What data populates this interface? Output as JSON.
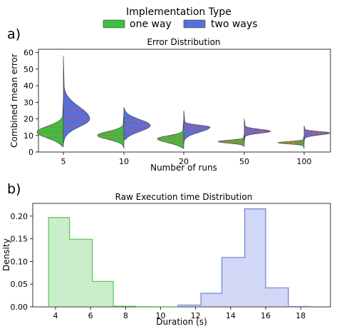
{
  "legend": {
    "title": "Implementation Type",
    "entries": [
      {
        "label": "one way",
        "color": "#3fbf3f"
      },
      {
        "label": "two ways",
        "color": "#5a6fd6"
      }
    ]
  },
  "panel_labels": [
    "a)",
    "b)"
  ],
  "chart_data": [
    {
      "type": "violin",
      "title": "Error Distribution",
      "xlabel": "Number of runs",
      "ylabel": "Combined mean error",
      "categories": [
        "5",
        "10",
        "20",
        "50",
        "100"
      ],
      "ylim": [
        0,
        62
      ],
      "yticks": [
        0,
        10,
        20,
        30,
        40,
        50,
        60
      ],
      "split": true,
      "inner": "quartile",
      "quartile_color": "#d9534f",
      "series": [
        {
          "name": "one way",
          "color": "#3fbf3f",
          "distributions": [
            {
              "min": 3,
              "q1": 9,
              "median": 12,
              "q3": 15,
              "max": 32,
              "mode": 12
            },
            {
              "min": 2,
              "q1": 8,
              "median": 10,
              "q3": 12,
              "max": 24,
              "mode": 10
            },
            {
              "min": 2,
              "q1": 6,
              "median": 8,
              "q3": 9.5,
              "max": 20,
              "mode": 8
            },
            {
              "min": 3,
              "q1": 5.5,
              "median": 6.3,
              "q3": 7,
              "max": 11,
              "mode": 6.3
            },
            {
              "min": 2,
              "q1": 5,
              "median": 5.6,
              "q3": 6.2,
              "max": 10,
              "mode": 5.6
            }
          ]
        },
        {
          "name": "two ways",
          "color": "#5a6fd6",
          "distributions": [
            {
              "min": 5,
              "q1": 16,
              "median": 21,
              "q3": 26,
              "max": 58,
              "mode": 20
            },
            {
              "min": 7,
              "q1": 13,
              "median": 16,
              "q3": 19,
              "max": 27,
              "mode": 16
            },
            {
              "min": 5,
              "q1": 12.5,
              "median": 14.5,
              "q3": 16,
              "max": 25,
              "mode": 15
            },
            {
              "min": 6,
              "q1": 11.5,
              "median": 12.5,
              "q3": 13.5,
              "max": 20,
              "mode": 12.5
            },
            {
              "min": 6,
              "q1": 10.5,
              "median": 11.5,
              "q3": 12.2,
              "max": 16,
              "mode": 11.5
            }
          ]
        }
      ]
    },
    {
      "type": "histogram",
      "title": "Raw Execution time Distribution",
      "xlabel": "Duration (s)",
      "ylabel": "Density",
      "xlim": [
        2.7,
        19.7
      ],
      "ylim": [
        0,
        0.228
      ],
      "xticks": [
        4,
        6,
        8,
        10,
        12,
        14,
        16,
        18
      ],
      "yticks": [
        0.0,
        0.05,
        0.1,
        0.15,
        0.2
      ],
      "ytick_labels": [
        "0.00",
        "0.05",
        "0.10",
        "0.15",
        "0.20"
      ],
      "series": [
        {
          "name": "one way",
          "color": "#3fbf3f",
          "bins": [
            {
              "x0": 3.6,
              "x1": 4.8,
              "value": 0.197
            },
            {
              "x0": 4.8,
              "x1": 6.1,
              "value": 0.149
            },
            {
              "x0": 6.1,
              "x1": 7.3,
              "value": 0.056
            },
            {
              "x0": 7.3,
              "x1": 8.6,
              "value": 0.0015
            },
            {
              "x0": 8.6,
              "x1": 9.8,
              "value": 0.0004
            },
            {
              "x0": 9.8,
              "x1": 11.0,
              "value": 0.0003
            }
          ]
        },
        {
          "name": "two ways",
          "color": "#5a6fd6",
          "bins": [
            {
              "x0": 11.0,
              "x1": 12.3,
              "value": 0.004
            },
            {
              "x0": 12.3,
              "x1": 13.5,
              "value": 0.03
            },
            {
              "x0": 13.5,
              "x1": 14.8,
              "value": 0.109
            },
            {
              "x0": 14.8,
              "x1": 16.0,
              "value": 0.216
            },
            {
              "x0": 16.0,
              "x1": 17.3,
              "value": 0.042
            },
            {
              "x0": 17.3,
              "x1": 18.5,
              "value": 0.0008
            }
          ]
        }
      ]
    }
  ]
}
